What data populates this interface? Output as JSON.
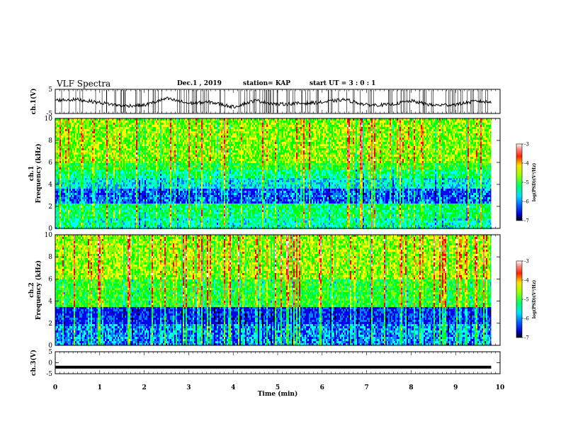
{
  "header": {
    "title": "VLF Spectra",
    "date": "Dec.1  , 2019",
    "station": "station= KAP",
    "start_ut": "start  UT =   3 : 0  : 1"
  },
  "chart_data": [
    {
      "type": "line",
      "panel": "ch1-voltage",
      "ylabel": "ch.1(V)",
      "ylim": [
        -5,
        5
      ],
      "yticks": [
        "5",
        "-5"
      ],
      "x": [
        0,
        0.5,
        1,
        1.5,
        2,
        2.5,
        3,
        3.5,
        4,
        4.5,
        5,
        5.5,
        6,
        6.5,
        7,
        7.5,
        8,
        8.5,
        9,
        9.5,
        9.8
      ],
      "values": [
        0.5,
        0.8,
        -0.5,
        -1.8,
        -1.6,
        1.2,
        -0.8,
        -0.3,
        -2.3,
        0.4,
        -1.2,
        -0.8,
        -0.4,
        0.8,
        -1.5,
        -1.4,
        0.2,
        -1.6,
        -1.3,
        0.2,
        -0.4
      ]
    },
    {
      "type": "heatmap",
      "panel": "ch1-spectrogram",
      "ylabel": "ch.1\nFrequency (kHz)",
      "ylim": [
        0,
        10
      ],
      "yticks": [
        "0",
        "2",
        "4",
        "6",
        "8",
        "10"
      ],
      "xlim": [
        0,
        9.8
      ],
      "colorbar": {
        "label": "log(PSD)(V²/Hz)",
        "ticks": [
          "-3",
          "-4",
          "-5",
          "-6",
          "-7"
        ],
        "range": [
          -7,
          -3
        ]
      }
    },
    {
      "type": "heatmap",
      "panel": "ch2-spectrogram",
      "ylabel": "ch.2\nFrequency (kHz)",
      "ylim": [
        0,
        10
      ],
      "yticks": [
        "0",
        "2",
        "4",
        "6",
        "8",
        "10"
      ],
      "xlim": [
        0,
        9.8
      ],
      "colorbar": {
        "label": "log(PSD)(V²/Hz)",
        "ticks": [
          "-3",
          "-4",
          "-5",
          "-6",
          "-7"
        ],
        "range": [
          -7,
          -3
        ]
      }
    },
    {
      "type": "line",
      "panel": "ch3-voltage",
      "ylabel": "ch.3(V)",
      "ylim": [
        -5,
        5
      ],
      "yticks": [
        "5",
        "0",
        "-5"
      ],
      "x": [
        0,
        9.8
      ],
      "values": [
        -2,
        -2
      ]
    }
  ],
  "xaxis": {
    "label": "Time  (min)",
    "xlim": [
      0,
      10
    ],
    "ticks": [
      "0",
      "1",
      "2",
      "3",
      "4",
      "5",
      "6",
      "7",
      "8",
      "9",
      "10"
    ]
  },
  "colors": {
    "colormap": [
      "#000000",
      "#0000cc",
      "#0000ff",
      "#0080ff",
      "#00ffff",
      "#00ff80",
      "#00ff00",
      "#80ff00",
      "#ffff00",
      "#ff8000",
      "#ff0000",
      "#ff8080",
      "#ffffff"
    ]
  }
}
